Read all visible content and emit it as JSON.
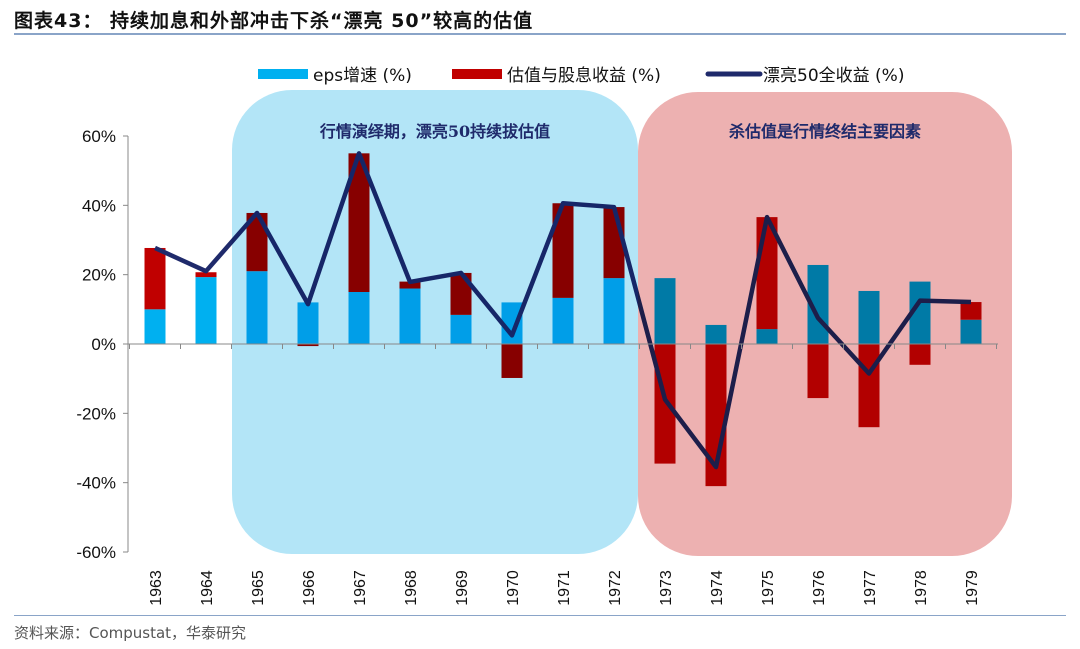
{
  "title": "图表43：  持续加息和外部冲击下杀“漂亮 50”较高的估值",
  "source": "资料来源：Compustat，华泰研究",
  "chart_data": {
    "type": "bar+line",
    "categories": [
      "1963",
      "1964",
      "1965",
      "1966",
      "1967",
      "1968",
      "1969",
      "1970",
      "1971",
      "1972",
      "1973",
      "1974",
      "1975",
      "1976",
      "1977",
      "1978",
      "1979"
    ],
    "series": [
      {
        "name": "eps增速 (%)",
        "type": "bar",
        "stacked": true,
        "color": "#00b0f0",
        "values": [
          10,
          19.3,
          21,
          12,
          15,
          16,
          8.4,
          12,
          13.3,
          19,
          19,
          5.5,
          4.3,
          22.8,
          15.3,
          18,
          7
        ]
      },
      {
        "name": "估值与股息收益 (%)",
        "type": "bar",
        "stacked": true,
        "color": "#c00000",
        "values": [
          17.7,
          1.4,
          16.8,
          -0.6,
          40,
          2,
          12.1,
          -9.8,
          27.3,
          20.5,
          -34.5,
          -41,
          32.3,
          -15.6,
          -24,
          -6,
          5.1
        ]
      },
      {
        "name": "漂亮50全收益 (%)",
        "type": "line",
        "color": "#1f2a6b",
        "values": [
          27.7,
          21,
          37.8,
          11.5,
          55,
          17.9,
          20.5,
          2.5,
          40.6,
          39.5,
          -16,
          -35.5,
          36.6,
          7.5,
          -8.5,
          12.5,
          12.1
        ]
      }
    ],
    "ylim": [
      -60,
      60
    ],
    "yticks": [
      "60%",
      "40%",
      "20%",
      "0%",
      "-20%",
      "-40%",
      "-60%"
    ],
    "legend": "top",
    "grid": false,
    "annotations": [
      {
        "text": "行情演绎期，漂亮50持续拔估值",
        "from": "1965",
        "to": "1972",
        "color": "#b3e5f7"
      },
      {
        "text": "杀估值是行情终结主要因素",
        "from": "1973",
        "to": "1979",
        "color": "#edb1b1"
      }
    ]
  }
}
